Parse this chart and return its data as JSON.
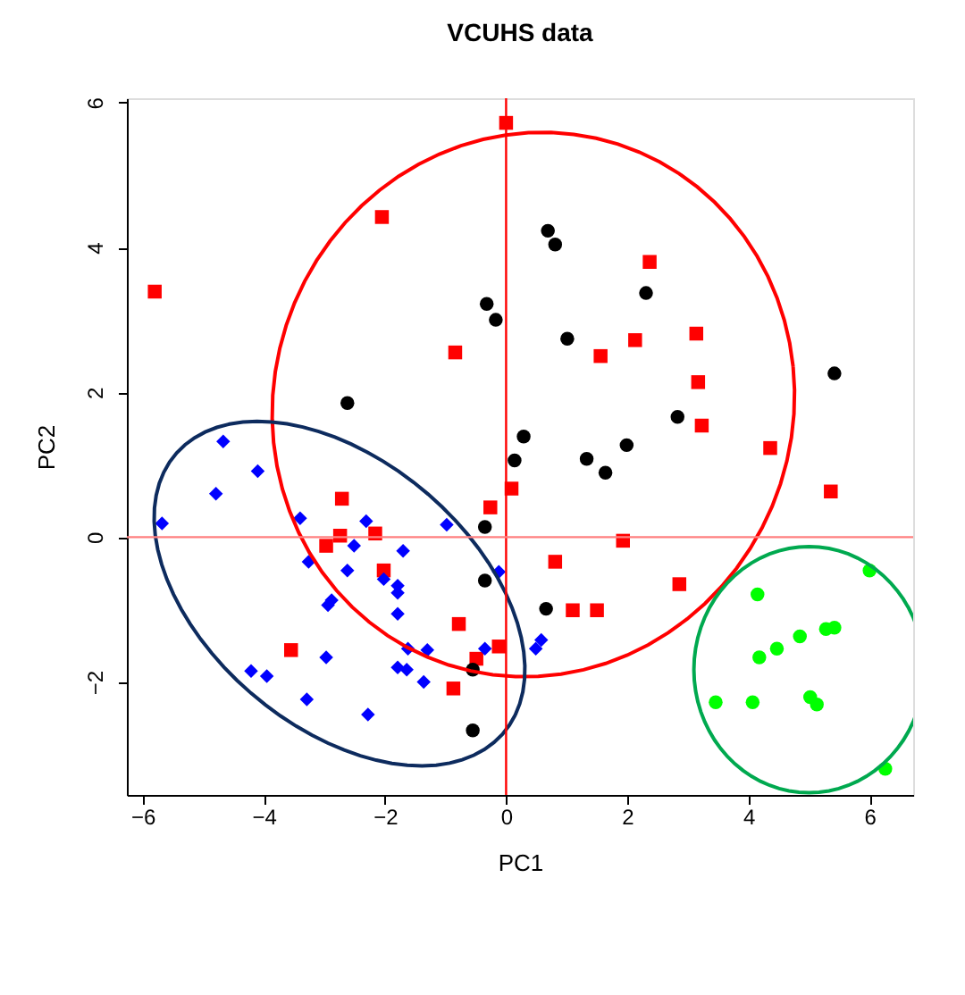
{
  "chart_data": {
    "type": "scatter",
    "title": "VCUHS data",
    "xlabel": "PC1",
    "ylabel": "PC2",
    "xlim": [
      -6.26,
      6.72
    ],
    "ylim": [
      -3.56,
      6.06
    ],
    "xticks": [
      -6,
      -4,
      -2,
      0,
      2,
      4,
      6
    ],
    "yticks": [
      -2,
      0,
      2,
      4,
      6
    ],
    "grid": false,
    "ref_lines": [
      {
        "axis": "x",
        "value": 0,
        "color": "#ff0000"
      },
      {
        "axis": "y",
        "value": 0,
        "color": "#ff8080"
      }
    ],
    "series": [
      {
        "marker": "square",
        "color": "#ff0000",
        "x": [
          -5.8,
          0.0,
          -2.05,
          -0.84,
          2.37,
          2.13,
          1.56,
          3.14,
          3.17,
          3.23,
          4.36,
          5.36,
          0.09,
          -0.26,
          1.93,
          0.81,
          2.86,
          1.1,
          1.5,
          -0.12,
          -2.71,
          -2.74,
          -2.97,
          -2.16,
          -2.02,
          -3.55,
          -0.78,
          -0.49,
          -0.87
        ],
        "values": [
          3.39,
          5.72,
          4.42,
          2.55,
          3.8,
          2.72,
          2.5,
          2.81,
          2.14,
          1.54,
          1.23,
          0.63,
          0.67,
          0.41,
          -0.05,
          -0.34,
          -0.65,
          -1.01,
          -1.01,
          -1.51,
          0.53,
          0.02,
          -0.12,
          0.05,
          -0.46,
          -1.56,
          -1.2,
          -1.68,
          -2.09
        ]
      },
      {
        "marker": "circle",
        "color": "#000000",
        "x": [
          -0.32,
          -0.17,
          -2.62,
          0.69,
          0.81,
          2.31,
          1.01,
          5.42,
          2.83,
          0.29,
          0.14,
          1.33,
          1.64,
          1.99,
          -0.35,
          -0.35,
          0.66,
          -0.55,
          -0.55
        ],
        "values": [
          3.22,
          3.0,
          1.85,
          4.23,
          4.04,
          3.37,
          2.74,
          2.26,
          1.66,
          1.39,
          1.06,
          1.08,
          0.89,
          1.27,
          0.14,
          -0.6,
          -0.99,
          -1.83,
          -2.67
        ]
      },
      {
        "marker": "diamond",
        "color": "#0000ff",
        "x": [
          -4.67,
          -4.1,
          -4.79,
          -5.68,
          -3.4,
          -2.31,
          -0.98,
          -2.51,
          -1.7,
          -3.26,
          -2.62,
          -2.02,
          -1.79,
          -1.79,
          -0.12,
          -2.88,
          -2.94,
          -1.79,
          -1.62,
          -1.3,
          -2.97,
          -1.79,
          -1.64,
          -1.36,
          -4.21,
          -3.95,
          -3.29,
          -2.28,
          -0.35,
          0.49,
          0.58
        ],
        "values": [
          1.32,
          0.91,
          0.6,
          0.19,
          0.26,
          0.22,
          0.17,
          -0.12,
          -0.19,
          -0.34,
          -0.46,
          -0.58,
          -0.67,
          -0.77,
          -0.48,
          -0.87,
          -0.94,
          -1.06,
          -1.54,
          -1.56,
          -1.66,
          -1.8,
          -1.83,
          -2.0,
          -1.85,
          -1.92,
          -2.24,
          -2.45,
          -1.54,
          -1.54,
          -1.42
        ]
      },
      {
        "marker": "circle",
        "color": "#00ff00",
        "x": [
          4.15,
          6.0,
          4.18,
          4.47,
          4.85,
          5.28,
          5.42,
          3.46,
          4.07,
          5.02,
          5.13,
          6.26
        ],
        "values": [
          -0.79,
          -0.46,
          -1.66,
          -1.54,
          -1.37,
          -1.27,
          -1.25,
          -2.28,
          -2.28,
          -2.21,
          -2.31,
          -3.2
        ]
      }
    ]
  }
}
